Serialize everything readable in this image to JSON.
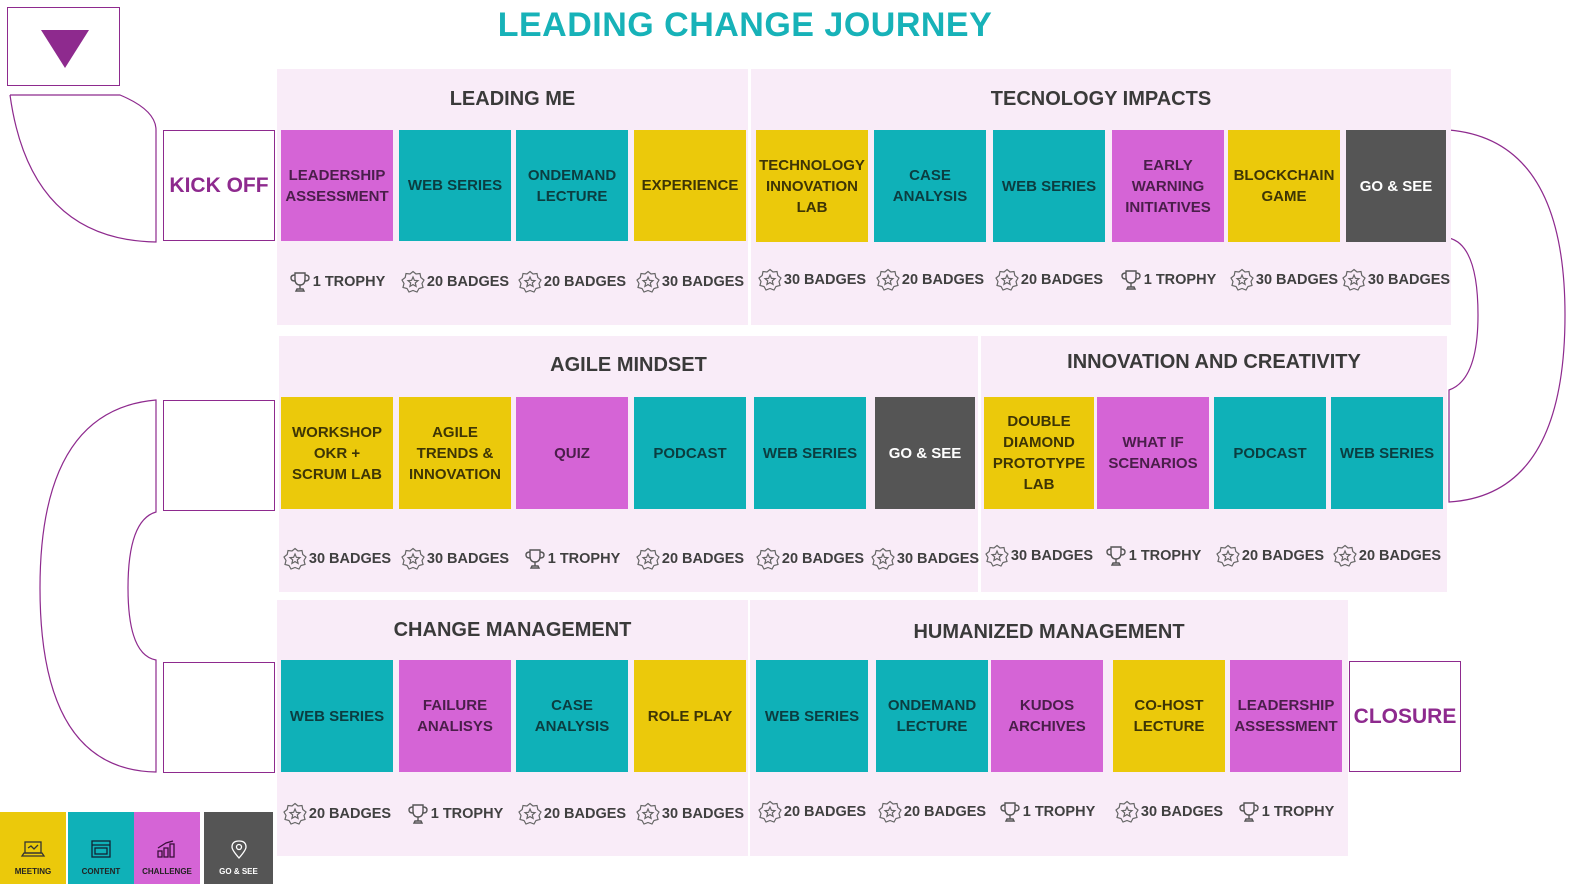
{
  "title": "LEADING CHANGE JOURNEY",
  "start_label": "KICK OFF",
  "end_label": "CLOSURE",
  "colors": {
    "challenge": "#d564d6",
    "content": "#0fb1b8",
    "meeting": "#ebc90b",
    "gosee": "#555555",
    "title": "#17b2b8",
    "accent": "#8e2a8e",
    "section_bg": "#f9ecf8"
  },
  "sections": [
    {
      "title": "LEADING ME",
      "items": [
        {
          "label": "LEADERSHIP\nASSESSMENT",
          "type": "challenge",
          "reward": "1 TROPHY",
          "reward_icon": "trophy-icon"
        },
        {
          "label": "WEB SERIES",
          "type": "content",
          "reward": "20 BADGES",
          "reward_icon": "badge-icon"
        },
        {
          "label": "ONDEMAND\nLECTURE",
          "type": "content",
          "reward": "20 BADGES",
          "reward_icon": "badge-icon"
        },
        {
          "label": "EXPERIENCE",
          "type": "meeting",
          "reward": "30 BADGES",
          "reward_icon": "badge-icon"
        }
      ]
    },
    {
      "title": "TECNOLOGY IMPACTS",
      "items": [
        {
          "label": "TECHNOLOGY\nINNOVATION\nLAB",
          "type": "meeting",
          "reward": "30 BADGES",
          "reward_icon": "badge-icon"
        },
        {
          "label": "CASE\nANALYSIS",
          "type": "content",
          "reward": "20 BADGES",
          "reward_icon": "badge-icon"
        },
        {
          "label": "WEB SERIES",
          "type": "content",
          "reward": "20 BADGES",
          "reward_icon": "badge-icon"
        },
        {
          "label": "EARLY\nWARNING\nINITIATIVES",
          "type": "challenge",
          "reward": "1 TROPHY",
          "reward_icon": "trophy-icon"
        },
        {
          "label": "BLOCKCHAIN\nGAME",
          "type": "meeting",
          "reward": "30 BADGES",
          "reward_icon": "badge-icon"
        },
        {
          "label": "GO & SEE",
          "type": "gosee",
          "reward": "30 BADGES",
          "reward_icon": "badge-icon"
        }
      ]
    },
    {
      "title": "AGILE MINDSET",
      "items": [
        {
          "label": "WORKSHOP\nOKR +\nSCRUM LAB",
          "type": "meeting",
          "reward": "30 BADGES",
          "reward_icon": "badge-icon"
        },
        {
          "label": "AGILE\nTRENDS &\nINNOVATION",
          "type": "meeting",
          "reward": "30 BADGES",
          "reward_icon": "badge-icon"
        },
        {
          "label": "QUIZ",
          "type": "challenge",
          "reward": "1 TROPHY",
          "reward_icon": "trophy-icon"
        },
        {
          "label": "PODCAST",
          "type": "content",
          "reward": "20 BADGES",
          "reward_icon": "badge-icon"
        },
        {
          "label": "WEB SERIES",
          "type": "content",
          "reward": "20 BADGES",
          "reward_icon": "badge-icon"
        },
        {
          "label": "GO & SEE",
          "type": "gosee",
          "reward": "30 BADGES",
          "reward_icon": "badge-icon"
        }
      ]
    },
    {
      "title": "INNOVATION AND CREATIVITY",
      "items": [
        {
          "label": "DOUBLE\nDIAMOND\nPROTOTYPE\nLAB",
          "type": "meeting",
          "reward": "30 BADGES",
          "reward_icon": "badge-icon"
        },
        {
          "label": "WHAT IF\nSCENARIOS",
          "type": "challenge",
          "reward": "1 TROPHY",
          "reward_icon": "trophy-icon"
        },
        {
          "label": "PODCAST",
          "type": "content",
          "reward": "20 BADGES",
          "reward_icon": "badge-icon"
        },
        {
          "label": "WEB SERIES",
          "type": "content",
          "reward": "20 BADGES",
          "reward_icon": "badge-icon"
        }
      ]
    },
    {
      "title": "CHANGE MANAGEMENT",
      "items": [
        {
          "label": "WEB SERIES",
          "type": "content",
          "reward": "20 BADGES",
          "reward_icon": "badge-icon"
        },
        {
          "label": "FAILURE\nANALISYS",
          "type": "challenge",
          "reward": "1 TROPHY",
          "reward_icon": "trophy-icon"
        },
        {
          "label": "CASE\nANALYSIS",
          "type": "content",
          "reward": "20 BADGES",
          "reward_icon": "badge-icon"
        },
        {
          "label": "ROLE PLAY",
          "type": "meeting",
          "reward": "30 BADGES",
          "reward_icon": "badge-icon"
        }
      ]
    },
    {
      "title": "HUMANIZED MANAGEMENT",
      "items": [
        {
          "label": "WEB SERIES",
          "type": "content",
          "reward": "20 BADGES",
          "reward_icon": "badge-icon"
        },
        {
          "label": "ONDEMAND\nLECTURE",
          "type": "content",
          "reward": "20 BADGES",
          "reward_icon": "badge-icon"
        },
        {
          "label": "KUDOS\nARCHIVES",
          "type": "challenge",
          "reward": "1 TROPHY",
          "reward_icon": "trophy-icon"
        },
        {
          "label": "CO-HOST\nLECTURE",
          "type": "meeting",
          "reward": "30 BADGES",
          "reward_icon": "badge-icon"
        },
        {
          "label": "LEADERSHIP\nASSESSMENT",
          "type": "challenge",
          "reward": "1 TROPHY",
          "reward_icon": "trophy-icon"
        }
      ]
    }
  ],
  "legend": [
    {
      "label": "MEETING",
      "type": "meeting",
      "icon": "laptop-icon"
    },
    {
      "label": "CONTENT",
      "type": "content",
      "icon": "browser-window-icon"
    },
    {
      "label": "CHALLENGE",
      "type": "challenge",
      "icon": "growth-chart-icon"
    },
    {
      "label": "GO & SEE",
      "type": "gosee",
      "icon": "location-pin-icon"
    }
  ]
}
